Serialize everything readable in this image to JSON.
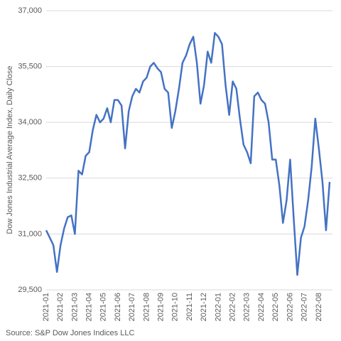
{
  "chart_data": {
    "type": "line",
    "y_label": "Dow Jones Industrial Average Index, Daily Close",
    "source": "Source: S&P Dow Jones Indices LLC",
    "categories": [
      "2021-01",
      null,
      null,
      null,
      "2021-02",
      null,
      null,
      null,
      "2021-03",
      null,
      null,
      null,
      "2021-04",
      null,
      null,
      null,
      "2021-05",
      null,
      null,
      null,
      "2021-06",
      null,
      null,
      null,
      "2021-07",
      null,
      null,
      null,
      "2021-08",
      null,
      null,
      null,
      "2021-09",
      null,
      null,
      null,
      "2021-10",
      null,
      null,
      null,
      "2021-11",
      null,
      null,
      null,
      "2021-12",
      null,
      null,
      null,
      "2022-01",
      null,
      null,
      null,
      "2022-02",
      null,
      null,
      null,
      "2022-03",
      null,
      null,
      null,
      "2022-04",
      null,
      null,
      null,
      "2022-05",
      null,
      null,
      null,
      "2022-06",
      null,
      null,
      null,
      "2022-07",
      null,
      null,
      null,
      "2022-08",
      null,
      null,
      null
    ],
    "series": [
      {
        "name": "Dow Jones Industrial Average",
        "color": "#4472c4",
        "values": [
          31100,
          30900,
          30700,
          29980,
          30700,
          31150,
          31450,
          31500,
          31000,
          32700,
          32600,
          33100,
          33200,
          33800,
          34200,
          34000,
          34100,
          34380,
          34000,
          34600,
          34600,
          34450,
          33300,
          34300,
          34700,
          34900,
          34800,
          35100,
          35200,
          35500,
          35600,
          35450,
          35350,
          34900,
          34800,
          33850,
          34300,
          34900,
          35600,
          35800,
          36100,
          36300,
          35600,
          34500,
          35000,
          35900,
          35600,
          36400,
          36300,
          36100,
          35000,
          34200,
          35100,
          34900,
          34100,
          33400,
          33200,
          32900,
          34700,
          34800,
          34600,
          34500,
          34000,
          33000,
          33000,
          32300,
          31300,
          31900,
          33000,
          31400,
          29900,
          30900,
          31200,
          31900,
          32800,
          34100,
          33300,
          32400,
          31100,
          32400
        ]
      }
    ],
    "ylim": [
      29500,
      37000
    ],
    "yticks": [
      {
        "value": 29500,
        "label": "29,500"
      },
      {
        "value": 31000,
        "label": "31,000"
      },
      {
        "value": 32500,
        "label": "32,500"
      },
      {
        "value": 34000,
        "label": "34,000"
      },
      {
        "value": 35500,
        "label": "35,500"
      },
      {
        "value": 37000,
        "label": "37,000"
      }
    ],
    "grid": true
  }
}
